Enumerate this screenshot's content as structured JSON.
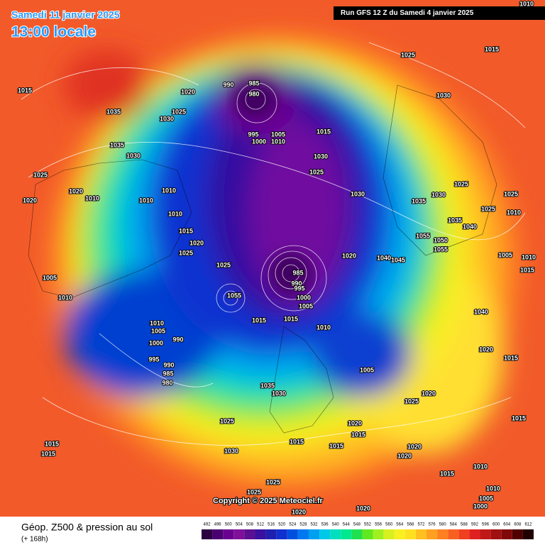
{
  "map": {
    "date": "Samedi 11 janvier 2025",
    "time": "13:00 locale",
    "run": "Run GFS 12 Z du Samedi 4 janvier 2025",
    "copyright": "Copyright © 2025 Meteociel.fr",
    "legend_title": "Géop. Z500 & pression au sol",
    "legend_subtitle": "(+ 168h)",
    "scale": {
      "ticks": [
        492,
        496,
        500,
        504,
        508,
        512,
        516,
        520,
        524,
        528,
        532,
        536,
        540,
        544,
        548,
        552,
        556,
        560,
        564,
        568,
        572,
        576,
        580,
        584,
        588,
        592,
        596,
        600,
        604,
        608,
        612
      ],
      "colors": [
        "#2a0040",
        "#4a0070",
        "#6a0090",
        "#80109a",
        "#5a1090",
        "#3a10a0",
        "#2020b0",
        "#1030d0",
        "#0050e0",
        "#0078f0",
        "#00a0f0",
        "#00c8e8",
        "#00e0c0",
        "#00e890",
        "#20e050",
        "#60e820",
        "#a0f020",
        "#d8f020",
        "#f8f020",
        "#ffe020",
        "#ffc020",
        "#ffa020",
        "#ff8020",
        "#f86020",
        "#f04020",
        "#e02020",
        "#c01818",
        "#a01010",
        "#800808",
        "#500000",
        "#200000"
      ]
    },
    "isobar_labels": [
      "1015",
      "1035",
      "1020",
      "1025",
      "1030",
      "990",
      "985",
      "980",
      "995",
      "1000",
      "1005",
      "1010",
      "1015",
      "1025",
      "1015",
      "1030",
      "1035",
      "1030",
      "1025",
      "1020",
      "1010",
      "1020",
      "1010",
      "1010",
      "1010",
      "1015",
      "1020",
      "1025",
      "1030",
      "1025",
      "1030",
      "1030",
      "1035",
      "1025",
      "1025",
      "1025",
      "1010",
      "1035",
      "1040",
      "1055",
      "1050",
      "1055",
      "1020",
      "1045",
      "1040",
      "1025",
      "985",
      "990",
      "995",
      "1000",
      "1005",
      "1055",
      "1005",
      "1010",
      "1015",
      "1015",
      "1010",
      "1010",
      "1005",
      "990",
      "1000",
      "995",
      "990",
      "985",
      "980",
      "1005",
      "1010",
      "1015",
      "1040",
      "1020",
      "1015",
      "1005",
      "1035",
      "1030",
      "1020",
      "1025",
      "1025",
      "1020",
      "1015",
      "1015",
      "1015",
      "1020",
      "1020",
      "1015",
      "1015",
      "1030",
      "1015",
      "1015",
      "1010",
      "1025",
      "1025",
      "1010",
      "1005",
      "1000",
      "1020",
      "1020",
      "1010"
    ]
  }
}
